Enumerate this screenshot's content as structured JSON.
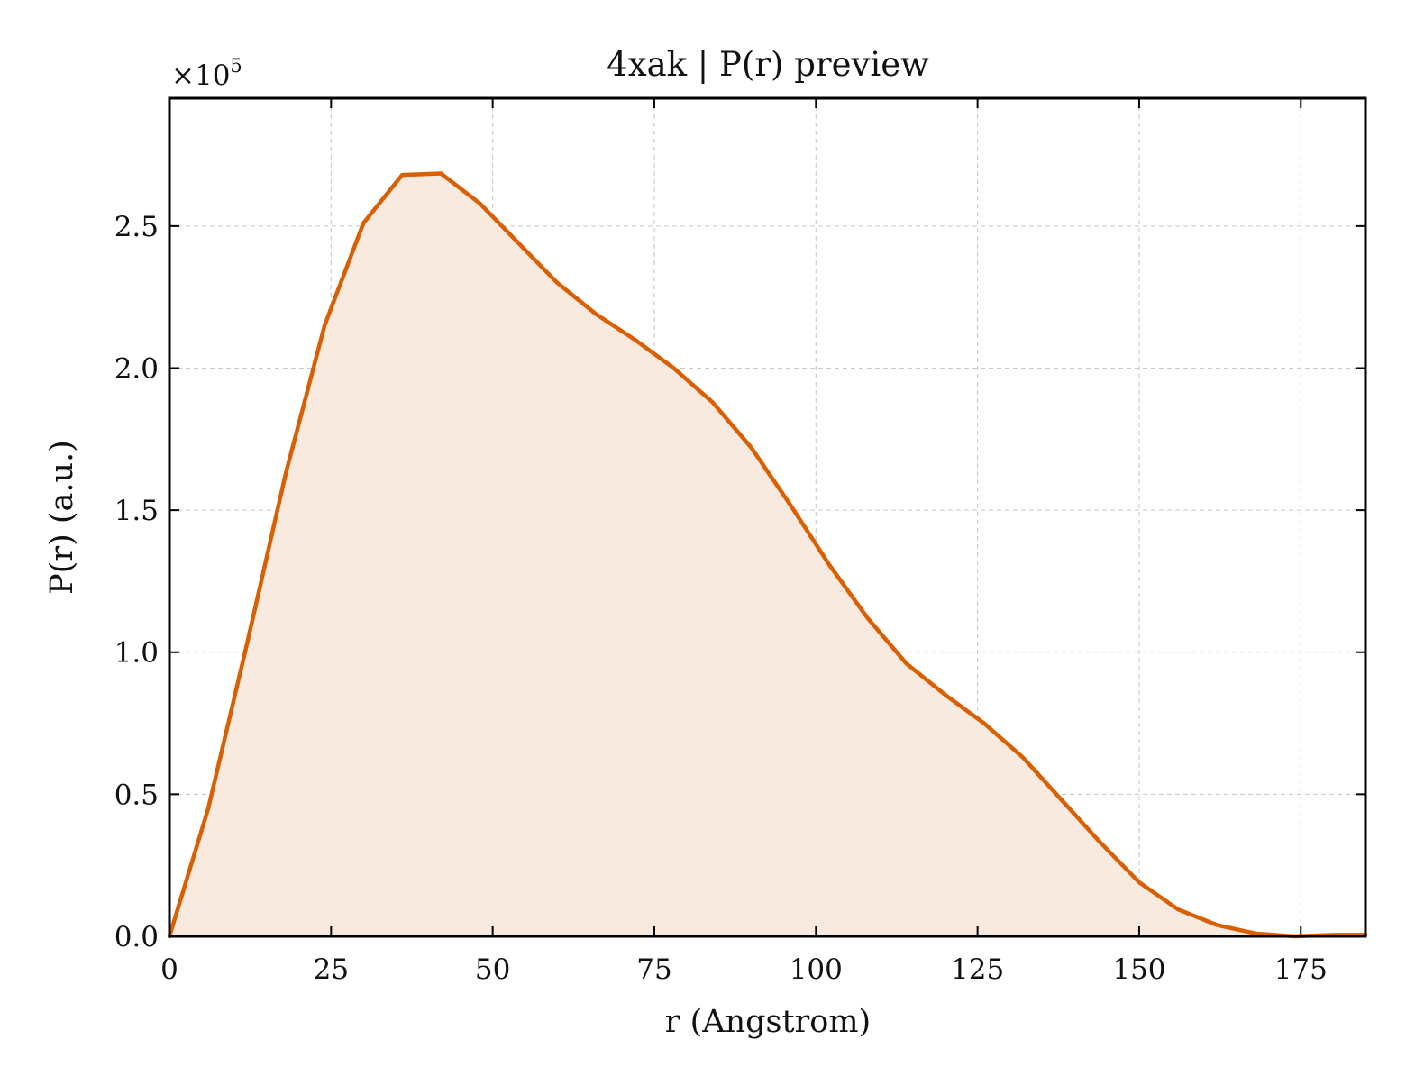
{
  "chart_data": {
    "type": "area",
    "title": "4xak | P(r) preview",
    "xlabel": "r (Angstrom)",
    "ylabel": "P(r) (a.u.)",
    "y_multiplier": {
      "base": "×10",
      "exponent": "5"
    },
    "xlim": [
      0,
      185
    ],
    "ylim": [
      0,
      2.95
    ],
    "x_ticks": [
      0,
      25,
      50,
      75,
      100,
      125,
      150,
      175
    ],
    "x_tick_labels": [
      "0",
      "25",
      "50",
      "75",
      "100",
      "125",
      "150",
      "175"
    ],
    "y_ticks": [
      0,
      0.5,
      1.0,
      1.5,
      2.0,
      2.5
    ],
    "y_tick_labels": [
      "0.0",
      "0.5",
      "1.0",
      "1.5",
      "2.0",
      "2.5"
    ],
    "grid": true,
    "series": [
      {
        "x": [
          0,
          6,
          12,
          18,
          24,
          30,
          36,
          42,
          48,
          54,
          60,
          66,
          72,
          78,
          84,
          90,
          96,
          102,
          108,
          114,
          120,
          126,
          132,
          138,
          144,
          150,
          156,
          162,
          168,
          174,
          180,
          185
        ],
        "values": [
          0.0,
          0.45,
          1.03,
          1.63,
          2.15,
          2.51,
          2.68,
          2.685,
          2.58,
          2.44,
          2.3,
          2.19,
          2.1,
          2.0,
          1.88,
          1.72,
          1.52,
          1.31,
          1.12,
          0.96,
          0.85,
          0.75,
          0.63,
          0.48,
          0.33,
          0.19,
          0.095,
          0.04,
          0.01,
          0.0,
          0.005,
          0.005
        ],
        "line_color": "#d95f02",
        "fill_color": "#f9eadf"
      }
    ]
  }
}
